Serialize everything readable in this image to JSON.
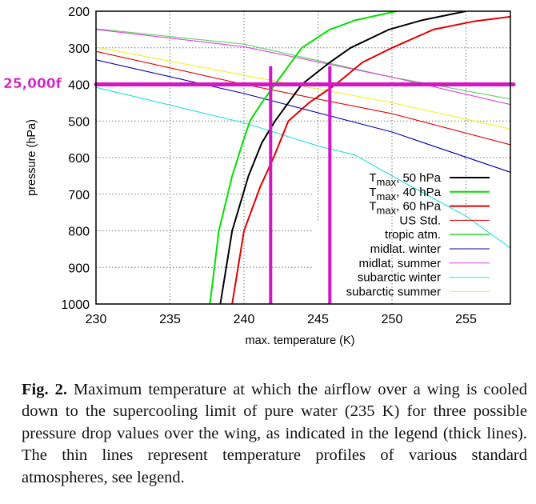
{
  "annotation_label": "25,000f",
  "chart_data": {
    "type": "line",
    "title": "",
    "xlabel": "max. temperature (K)",
    "ylabel": "pressure (hPa)",
    "xlim": [
      230,
      258
    ],
    "ylim": [
      1000,
      200
    ],
    "y_inverted": true,
    "grid": true,
    "legend_position": "bottom-right",
    "xticks": [
      "230",
      "235",
      "240",
      "245",
      "250",
      "255"
    ],
    "yticks": [
      "200",
      "300",
      "400",
      "500",
      "600",
      "700",
      "800",
      "900",
      "1000"
    ],
    "series": [
      {
        "name": "Tmax, 50 hPa",
        "label": {
          "main": "T",
          "sub": "max",
          "rest": ", 50 hPa"
        },
        "color": "#000000",
        "thick": true,
        "points": [
          [
            238.4,
            1000
          ],
          [
            239.2,
            800
          ],
          [
            240.3,
            650
          ],
          [
            241.2,
            560
          ],
          [
            242.1,
            500
          ],
          [
            243.0,
            450
          ],
          [
            243.9,
            400
          ],
          [
            245.8,
            340
          ],
          [
            247.2,
            300
          ],
          [
            249.8,
            250
          ],
          [
            252.0,
            225
          ],
          [
            255.0,
            200
          ]
        ]
      },
      {
        "name": "Tmax, 40 hPa",
        "label": {
          "main": "T",
          "sub": "max",
          "rest": ", 40 hPa"
        },
        "color": "#00e000",
        "thick": true,
        "points": [
          [
            237.7,
            1000
          ],
          [
            238.3,
            800
          ],
          [
            239.2,
            650
          ],
          [
            239.9,
            560
          ],
          [
            240.4,
            500
          ],
          [
            241.2,
            450
          ],
          [
            242.1,
            400
          ],
          [
            243.9,
            300
          ],
          [
            245.8,
            250
          ],
          [
            247.5,
            225
          ],
          [
            250.3,
            200
          ]
        ]
      },
      {
        "name": "Tmax, 60 hPa",
        "label": {
          "main": "T",
          "sub": "max",
          "rest": ", 60 hPa"
        },
        "color": "#e00000",
        "thick": true,
        "points": [
          [
            239.2,
            1000
          ],
          [
            240.0,
            800
          ],
          [
            241.1,
            680
          ],
          [
            242.0,
            600
          ],
          [
            243.0,
            500
          ],
          [
            244.4,
            450
          ],
          [
            246.2,
            400
          ],
          [
            248.0,
            340
          ],
          [
            250.0,
            300
          ],
          [
            252.8,
            250
          ],
          [
            255.5,
            228
          ],
          [
            258.0,
            215
          ]
        ]
      },
      {
        "name": "US Std.",
        "label": {
          "main": "US Std."
        },
        "color": "#e00000",
        "thick": false,
        "points": [
          [
            230,
            310
          ],
          [
            240,
            400
          ],
          [
            250,
            480
          ],
          [
            258,
            565
          ]
        ]
      },
      {
        "name": "tropic atm.",
        "label": {
          "main": "tropic atm."
        },
        "color": "#60d060",
        "thick": false,
        "points": [
          [
            230,
            248
          ],
          [
            240,
            290
          ],
          [
            250,
            380
          ],
          [
            258,
            440
          ]
        ]
      },
      {
        "name": "midlat. winter",
        "label": {
          "main": "midlat. winter"
        },
        "color": "#0000b0",
        "thick": false,
        "points": [
          [
            230,
            333
          ],
          [
            240,
            425
          ],
          [
            250,
            530
          ],
          [
            258,
            640
          ]
        ]
      },
      {
        "name": "midlat. summer",
        "label": {
          "main": "midlat. summer"
        },
        "color": "#e040e0",
        "thick": false,
        "points": [
          [
            230,
            250
          ],
          [
            240,
            297
          ],
          [
            250,
            380
          ],
          [
            258,
            455
          ]
        ]
      },
      {
        "name": "subarctic winter",
        "label": {
          "main": "subarctic winter"
        },
        "color": "#20e0e0",
        "thick": false,
        "points": [
          [
            230,
            408
          ],
          [
            240,
            505
          ],
          [
            245,
            568
          ],
          [
            247.5,
            593
          ],
          [
            250,
            650
          ],
          [
            255,
            760
          ],
          [
            258,
            847
          ]
        ]
      },
      {
        "name": "subarctic summer",
        "label": {
          "main": "subarctic summer"
        },
        "color": "#f0f020",
        "thick": false,
        "points": [
          [
            230,
            298
          ],
          [
            240,
            375
          ],
          [
            250,
            450
          ],
          [
            258,
            522
          ]
        ]
      }
    ],
    "annotations": {
      "color": "#d316c6",
      "horizontal_line_pressure": 400,
      "vertical_lines": [
        {
          "x": 241.8,
          "from": 350,
          "to": 1000
        },
        {
          "x": 245.8,
          "from": 350,
          "to": 1000
        }
      ]
    }
  },
  "caption": {
    "label": "Fig. 2.",
    "text": "Maximum temperature at which the airflow over a wing is cooled down to the supercooling limit of pure water (235 K) for three possible pressure drop values over the wing, as indicated in the legend (thick lines). The thin lines represent temperature profiles of various standard atmospheres, see legend."
  }
}
